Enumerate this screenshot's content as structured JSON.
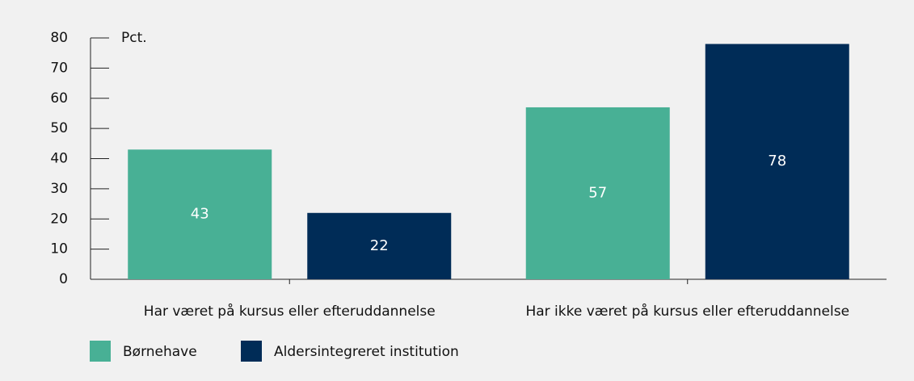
{
  "chart_data": {
    "type": "bar",
    "y_label": "Pct.",
    "categories": [
      "Har været på kursus eller efteruddannelse",
      "Har ikke været på kursus eller efteruddannelse"
    ],
    "series": [
      {
        "name": "Børnehave",
        "color": "#48b095",
        "values": [
          43,
          57
        ]
      },
      {
        "name": "Aldersintegreret institution",
        "color": "#002c57",
        "values": [
          22,
          78
        ]
      }
    ],
    "ylim": [
      0,
      80
    ],
    "yticks": [
      0,
      10,
      20,
      30,
      40,
      50,
      60,
      70,
      80
    ]
  }
}
